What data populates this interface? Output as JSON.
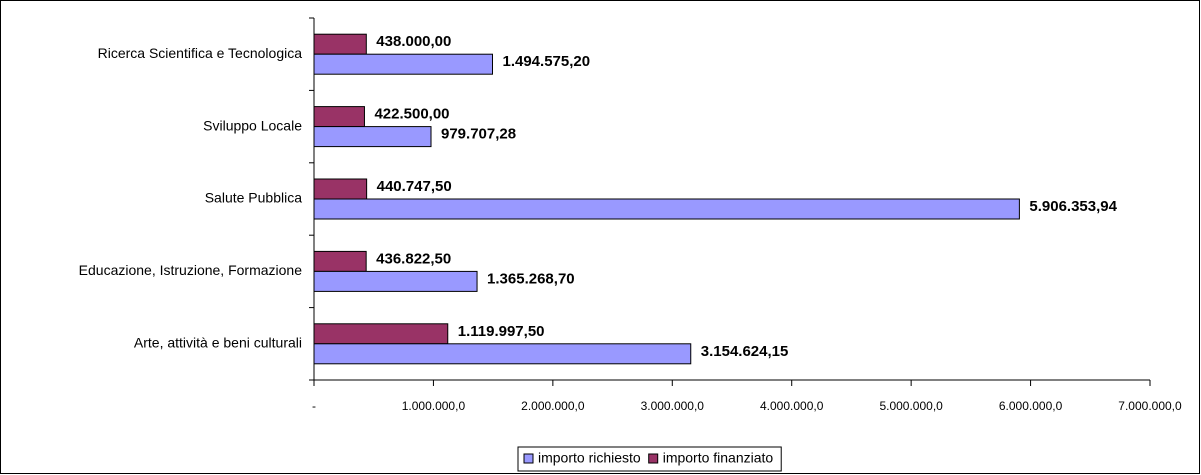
{
  "chart_data": {
    "type": "bar",
    "orientation": "horizontal",
    "categories": [
      "Ricerca Scientifica e Tecnologica",
      "Sviluppo Locale",
      "Salute Pubblica",
      "Educazione, Istruzione, Formazione",
      "Arte, attività e beni culturali"
    ],
    "series": [
      {
        "name": "importo finanziato",
        "color": "#993366",
        "values": [
          438000.0,
          422500.0,
          440747.5,
          436822.5,
          1119997.5
        ],
        "value_labels": [
          "438.000,00",
          "422.500,00",
          "440.747,50",
          "436.822,50",
          "1.119.997,50"
        ]
      },
      {
        "name": "importo richiesto",
        "color": "#9999ff",
        "values": [
          1494575.2,
          979707.28,
          5906353.94,
          1365268.7,
          3154624.15
        ],
        "value_labels": [
          "1.494.575,20",
          "979.707,28",
          "5.906.353,94",
          "1.365.268,70",
          "3.154.624,15"
        ]
      }
    ],
    "legend_order": [
      1,
      0
    ],
    "legend": "bottom",
    "xlim": [
      0,
      7000000
    ],
    "xticks": [
      {
        "value": 0,
        "label": "-"
      },
      {
        "value": 1000000,
        "label": "1.000.000,0"
      },
      {
        "value": 2000000,
        "label": "2.000.000,0"
      },
      {
        "value": 3000000,
        "label": "3.000.000,0"
      },
      {
        "value": 4000000,
        "label": "4.000.000,0"
      },
      {
        "value": 5000000,
        "label": "5.000.000,0"
      },
      {
        "value": 6000000,
        "label": "6.000.000,0"
      },
      {
        "value": 7000000,
        "label": "7.000.000,0"
      }
    ]
  }
}
